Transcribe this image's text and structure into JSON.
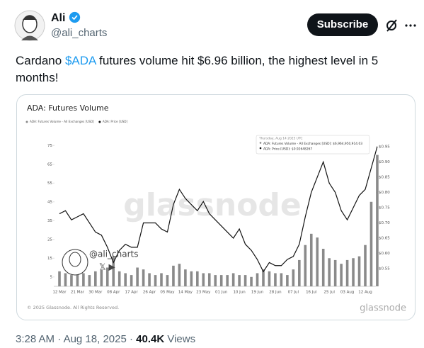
{
  "tweet": {
    "name": "Ali",
    "handle": "@ali_charts",
    "button": "Subscribe",
    "text_parts": [
      "Cardano ",
      "$ADA",
      " futures volume hit $6.96 billion, the highest level in 5 months!"
    ],
    "time": "3:28 AM",
    "separator": "·",
    "date": "Aug 18, 2025",
    "views": "40.4K",
    "views_label": "Views"
  },
  "chart_data": {
    "type": "bar-line",
    "title": "ADA: Futures Volume",
    "categories": [
      "12 Mar",
      null,
      null,
      "21 Mar",
      null,
      null,
      "30 Mar",
      null,
      null,
      "08 Apr",
      null,
      null,
      "17 Apr",
      null,
      null,
      "26 Apr",
      null,
      null,
      "05 May",
      null,
      null,
      "14 May",
      null,
      null,
      "23 May",
      null,
      null,
      "01 Jun",
      null,
      null,
      "10 Jun",
      null,
      null,
      "19 Jun",
      null,
      null,
      "28 Jun",
      null,
      null,
      "07 Jul",
      null,
      null,
      "16 Jul",
      null,
      null,
      "25 Jul",
      null,
      null,
      "03 Aug",
      null,
      null,
      "12 Aug",
      null,
      null
    ],
    "series": [
      {
        "name": "ADA: Futures Volume - All Exchanges [USD]",
        "kind": "bar",
        "color": "#8a8a8a",
        "values": [
          8,
          7,
          6,
          9,
          7,
          6,
          8,
          9,
          10,
          16,
          8,
          7,
          6,
          10,
          9,
          7,
          6,
          7,
          6,
          11,
          12,
          9,
          8,
          8,
          7,
          7,
          6,
          6,
          6,
          7,
          6,
          6,
          5,
          7,
          9,
          8,
          7,
          7,
          6,
          9,
          14,
          22,
          28,
          26,
          20,
          15,
          14,
          12,
          14,
          15,
          16,
          22,
          45,
          70
        ]
      },
      {
        "name": "ADA: Price [USD]",
        "kind": "line",
        "axis": "y2",
        "color": "#111111",
        "values": [
          0.73,
          0.74,
          0.71,
          0.72,
          0.73,
          0.7,
          0.67,
          0.66,
          0.62,
          0.57,
          0.61,
          0.63,
          0.62,
          0.62,
          0.7,
          0.7,
          0.7,
          0.68,
          0.67,
          0.76,
          0.81,
          0.78,
          0.76,
          0.74,
          0.77,
          0.73,
          0.71,
          0.69,
          0.67,
          0.65,
          0.68,
          0.63,
          0.61,
          0.58,
          0.54,
          0.57,
          0.56,
          0.56,
          0.58,
          0.59,
          0.63,
          0.72,
          0.8,
          0.85,
          0.9,
          0.83,
          0.8,
          0.74,
          0.71,
          0.75,
          0.79,
          0.81,
          0.88,
          0.95
        ]
      }
    ],
    "ylim": [
      0,
      77
    ],
    "yticks": [
      5,
      15,
      25,
      35,
      45,
      55,
      65,
      75
    ],
    "y2lim": [
      0.492,
      0.966
    ],
    "y2ticks": [
      {
        "value": 0.55,
        "label": "$0.55"
      },
      {
        "value": 0.6,
        "label": "$0.60"
      },
      {
        "value": 0.65,
        "label": "$0.65"
      },
      {
        "value": 0.7,
        "label": "$0.70"
      },
      {
        "value": 0.75,
        "label": "$0.75"
      },
      {
        "value": 0.8,
        "label": "$0.80"
      },
      {
        "value": 0.85,
        "label": "$0.85"
      },
      {
        "value": 0.9,
        "label": "$0.90"
      },
      {
        "value": 0.95,
        "label": "$0.95"
      }
    ],
    "tooltip": [
      "Thursday, Aug 14 2025 UTC",
      "ADA: Futures Volume - All Exchanges [USD]: $6,964,950,914.03",
      "ADA: Price [USD]: $0.92648267"
    ],
    "watermark": "glassnode",
    "overlay_handle": "@ali_charts",
    "footer": "© 2025 Glassnode. All Rights Reserved.",
    "brand": "glassnode"
  }
}
